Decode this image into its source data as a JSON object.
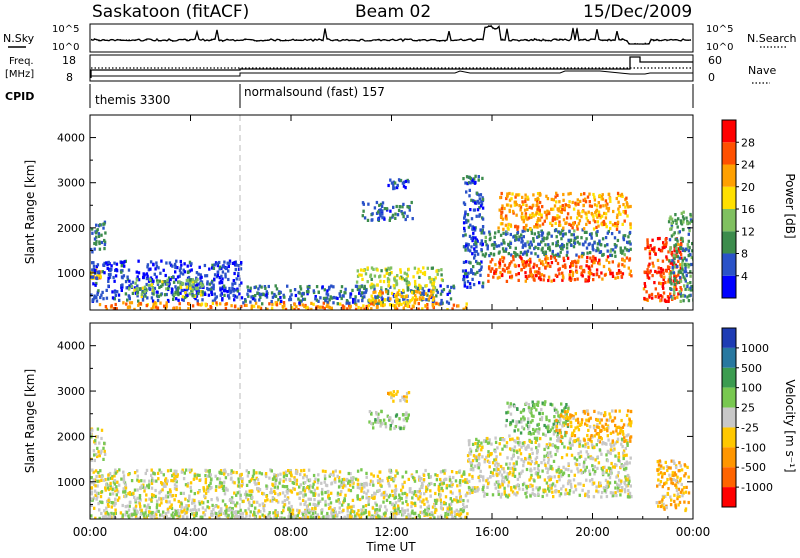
{
  "header": {
    "station": "Saskatoon (fitACF)",
    "beam": "Beam 02",
    "date": "15/Dec/2009"
  },
  "noise_panel": {
    "left_label": "N.Sky",
    "right_label": "N.Search",
    "left_ticks": [
      "10^5",
      "10^0"
    ],
    "right_ticks": [
      "10^5",
      "10^0"
    ]
  },
  "freq_panel": {
    "left_label_1": "Freq.",
    "left_label_2": "[MHz]",
    "left_ticks": [
      "18",
      "8"
    ],
    "right_label": "Nave",
    "right_ticks": [
      "60",
      "0"
    ]
  },
  "cpid_panel": {
    "label": "CPID",
    "segments": [
      {
        "text": "themis 3300",
        "start": 0
      },
      {
        "text": "normalsound (fast) 157",
        "start": 6.0
      }
    ]
  },
  "power_panel": {
    "ylabel": "Slant Range [km]",
    "yticks": [
      "1000",
      "2000",
      "3000",
      "4000"
    ],
    "colorbar_label": "Power [dB]",
    "colorbar_ticks": [
      "4",
      "8",
      "12",
      "16",
      "20",
      "24",
      "28"
    ],
    "colorbar_colors": [
      "#0000ff",
      "#2a52c8",
      "#3c8c4c",
      "#80c060",
      "#ffe000",
      "#ffa000",
      "#ff5000",
      "#ff0000"
    ]
  },
  "velocity_panel": {
    "ylabel": "Slant Range [km]",
    "yticks": [
      "1000",
      "2000",
      "3000",
      "4000"
    ],
    "colorbar_label": "Velocity [m s⁻¹]",
    "colorbar_ticks": [
      "1000",
      "500",
      "100",
      "25",
      "-25",
      "-100",
      "-500",
      "-1000"
    ],
    "colorbar_colors": [
      "#1e3cb4",
      "#2878a0",
      "#3c9c50",
      "#78c850",
      "#c8c8c8",
      "#ffc800",
      "#ff9600",
      "#ff6400",
      "#ff0000"
    ]
  },
  "x_axis": {
    "label": "Time UT",
    "ticks": [
      "00:00",
      "04:00",
      "08:00",
      "12:00",
      "16:00",
      "20:00",
      "00:00"
    ]
  },
  "chart_data": {
    "type": "heatmap",
    "title": "Saskatoon (fitACF) Beam 02 15/Dec/2009",
    "xlabel": "Time UT",
    "ylabel": "Slant Range [km]",
    "x_range_hours": [
      0,
      24
    ],
    "y_range_km": [
      180,
      4500
    ],
    "panels": [
      {
        "name": "Power",
        "unit": "dB",
        "range": [
          3,
          30
        ],
        "regions": [
          {
            "t": [
              0.0,
              0.6
            ],
            "r": [
              1500,
              2200
            ],
            "v": 10
          },
          {
            "t": [
              0.0,
              0.4
            ],
            "r": [
              900,
              1100
            ],
            "v": 20
          },
          {
            "t": [
              0.0,
              6.0
            ],
            "r": [
              400,
              1300
            ],
            "v": 7
          },
          {
            "t": [
              1.5,
              4.5
            ],
            "r": [
              500,
              900
            ],
            "v": 14
          },
          {
            "t": [
              0.3,
              15.0
            ],
            "r": [
              220,
              380
            ],
            "v": 22
          },
          {
            "t": [
              6.0,
              14.5
            ],
            "r": [
              350,
              750
            ],
            "v": 9
          },
          {
            "t": [
              10.5,
              14.0
            ],
            "r": [
              700,
              1150
            ],
            "v": 16
          },
          {
            "t": [
              11.0,
              13.8
            ],
            "r": [
              300,
              650
            ],
            "v": 20
          },
          {
            "t": [
              10.8,
              12.8
            ],
            "r": [
              2200,
              2600
            ],
            "v": 9
          },
          {
            "t": [
              11.8,
              12.7
            ],
            "r": [
              2900,
              3100
            ],
            "v": 8
          },
          {
            "t": [
              14.8,
              15.6
            ],
            "r": [
              700,
              3200
            ],
            "v": 8
          },
          {
            "t": [
              15.5,
              21.5
            ],
            "r": [
              1400,
              2000
            ],
            "v": 10
          },
          {
            "t": [
              15.8,
              21.5
            ],
            "r": [
              850,
              1400
            ],
            "v": 25
          },
          {
            "t": [
              16.2,
              21.5
            ],
            "r": [
              2000,
              2800
            ],
            "v": 22
          },
          {
            "t": [
              22.0,
              23.5
            ],
            "r": [
              400,
              1800
            ],
            "v": 26
          },
          {
            "t": [
              23.0,
              24.0
            ],
            "r": [
              400,
              2400
            ],
            "v": 12
          }
        ]
      },
      {
        "name": "Velocity",
        "unit": "m s-1",
        "range": [
          -1000,
          1000
        ],
        "regions": [
          {
            "t": [
              0.0,
              0.6
            ],
            "r": [
              1500,
              2200
            ],
            "v": 0
          },
          {
            "t": [
              0.0,
              15.0
            ],
            "r": [
              200,
              1300
            ],
            "v": 0
          },
          {
            "t": [
              0.0,
              15.0
            ],
            "r": [
              200,
              420
            ],
            "v": 60
          },
          {
            "t": [
              11.8,
              12.7
            ],
            "r": [
              2800,
              3050
            ],
            "v": -200
          },
          {
            "t": [
              11.0,
              12.7
            ],
            "r": [
              2200,
              2600
            ],
            "v": 150
          },
          {
            "t": [
              15.0,
              21.5
            ],
            "r": [
              700,
              2000
            ],
            "v": 0
          },
          {
            "t": [
              16.5,
              19.0
            ],
            "r": [
              2000,
              2800
            ],
            "v": 200
          },
          {
            "t": [
              18.5,
              21.5
            ],
            "r": [
              1900,
              2600
            ],
            "v": -300
          },
          {
            "t": [
              22.5,
              23.8
            ],
            "r": [
              400,
              1500
            ],
            "v": -250
          }
        ]
      }
    ]
  }
}
